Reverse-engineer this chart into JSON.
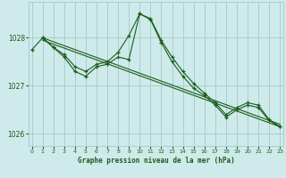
{
  "title": "Graphe pression niveau de la mer (hPa)",
  "background_color": "#ceeaea",
  "grid_color": "#aacece",
  "line_color": "#1a5c1a",
  "xlim": [
    -0.3,
    23.3
  ],
  "ylim": [
    1025.75,
    1028.75
  ],
  "yticks": [
    1026,
    1027,
    1028
  ],
  "xticks": [
    0,
    1,
    2,
    3,
    4,
    5,
    6,
    7,
    8,
    9,
    10,
    11,
    12,
    13,
    14,
    15,
    16,
    17,
    18,
    19,
    20,
    21,
    22,
    23
  ],
  "series_main": {
    "x": [
      0,
      1,
      2,
      3,
      4,
      5,
      6,
      7,
      8,
      9,
      10,
      11,
      12,
      13,
      14,
      15,
      16,
      17,
      18,
      19,
      20,
      21,
      22,
      23
    ],
    "y": [
      1027.75,
      1028.0,
      1027.8,
      1027.65,
      1027.4,
      1027.3,
      1027.45,
      1027.5,
      1027.7,
      1028.05,
      1028.5,
      1028.4,
      1027.95,
      1027.6,
      1027.3,
      1027.05,
      1026.85,
      1026.65,
      1026.4,
      1026.55,
      1026.65,
      1026.6,
      1026.3,
      1026.15
    ]
  },
  "series2": {
    "x": [
      1,
      2,
      3,
      4,
      5,
      6,
      7,
      8,
      9,
      10,
      11,
      12,
      13,
      14,
      15,
      16,
      17,
      18,
      19,
      20,
      21,
      22,
      23
    ],
    "y": [
      1028.0,
      1027.8,
      1027.6,
      1027.3,
      1027.2,
      1027.4,
      1027.45,
      1027.6,
      1027.55,
      1028.5,
      1028.38,
      1027.9,
      1027.5,
      1027.2,
      1026.95,
      1026.8,
      1026.6,
      1026.35,
      1026.5,
      1026.6,
      1026.55,
      1026.28,
      1026.15
    ]
  },
  "line_diag1": {
    "x": [
      1,
      23
    ],
    "y": [
      1028.0,
      1026.2
    ]
  },
  "line_diag2": {
    "x": [
      1,
      23
    ],
    "y": [
      1027.95,
      1026.15
    ]
  }
}
